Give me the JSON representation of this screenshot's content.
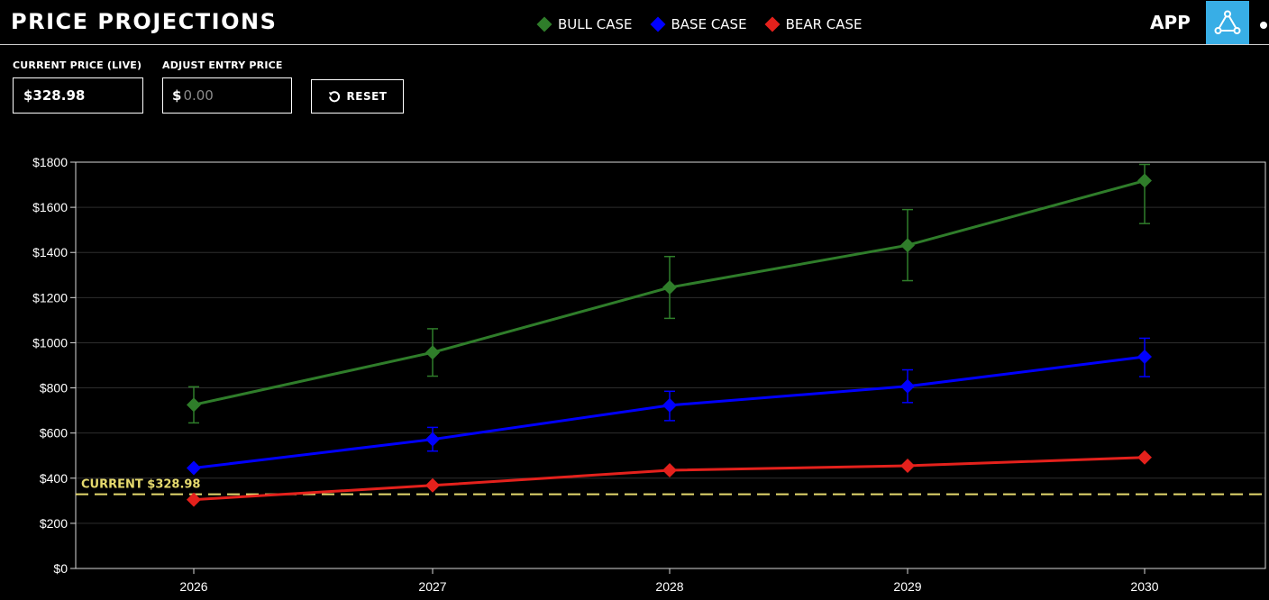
{
  "header": {
    "title": "PRICE PROJECTIONS",
    "app_label": "APP",
    "app_icon": "triangle-network-icon",
    "accent_color": "#38aee6"
  },
  "legend": [
    {
      "label": "BULL CASE",
      "color": "#2f7d2a"
    },
    {
      "label": "BASE CASE",
      "color": "#0000ff"
    },
    {
      "label": "BEAR CASE",
      "color": "#e4211c"
    }
  ],
  "controls": {
    "current_price_label": "CURRENT PRICE (LIVE)",
    "current_price_value": "$328.98",
    "entry_label": "ADJUST ENTRY PRICE",
    "entry_prefix": "$",
    "entry_placeholder": "0.00",
    "reset_label": "RESET"
  },
  "chart_data": {
    "type": "line",
    "title": "",
    "xlabel": "",
    "ylabel": "",
    "categories": [
      "2026",
      "2027",
      "2028",
      "2029",
      "2030"
    ],
    "ylim": [
      0,
      1800
    ],
    "yticks": [
      0,
      200,
      400,
      600,
      800,
      1000,
      1200,
      1400,
      1600,
      1800
    ],
    "ytick_labels": [
      "$0",
      "$200",
      "$400",
      "$600",
      "$800",
      "$1000",
      "$1200",
      "$1400",
      "$1600",
      "$1800"
    ],
    "grid": true,
    "legend_position": "top",
    "marker": "diamond",
    "series": [
      {
        "name": "BULL CASE",
        "color": "#2f7d2a",
        "values": [
          725,
          957,
          1245,
          1432,
          1718
        ],
        "error_low": [
          645,
          852,
          1108,
          1275,
          1528
        ],
        "error_high": [
          805,
          1062,
          1382,
          1590,
          1790
        ]
      },
      {
        "name": "BASE CASE",
        "color": "#0000ff",
        "values": [
          445,
          572,
          723,
          807,
          938
        ],
        "error_low": [
          445,
          520,
          655,
          735,
          850
        ],
        "error_high": [
          445,
          625,
          785,
          880,
          1020
        ]
      },
      {
        "name": "BEAR CASE",
        "color": "#e4211c",
        "values": [
          305,
          368,
          435,
          455,
          492
        ],
        "error_low": [
          305,
          368,
          435,
          455,
          492
        ],
        "error_high": [
          305,
          368,
          435,
          455,
          492
        ]
      }
    ],
    "reference_line": {
      "value": 328.98,
      "label": "CURRENT $328.98",
      "color": "#e6da6e"
    }
  }
}
